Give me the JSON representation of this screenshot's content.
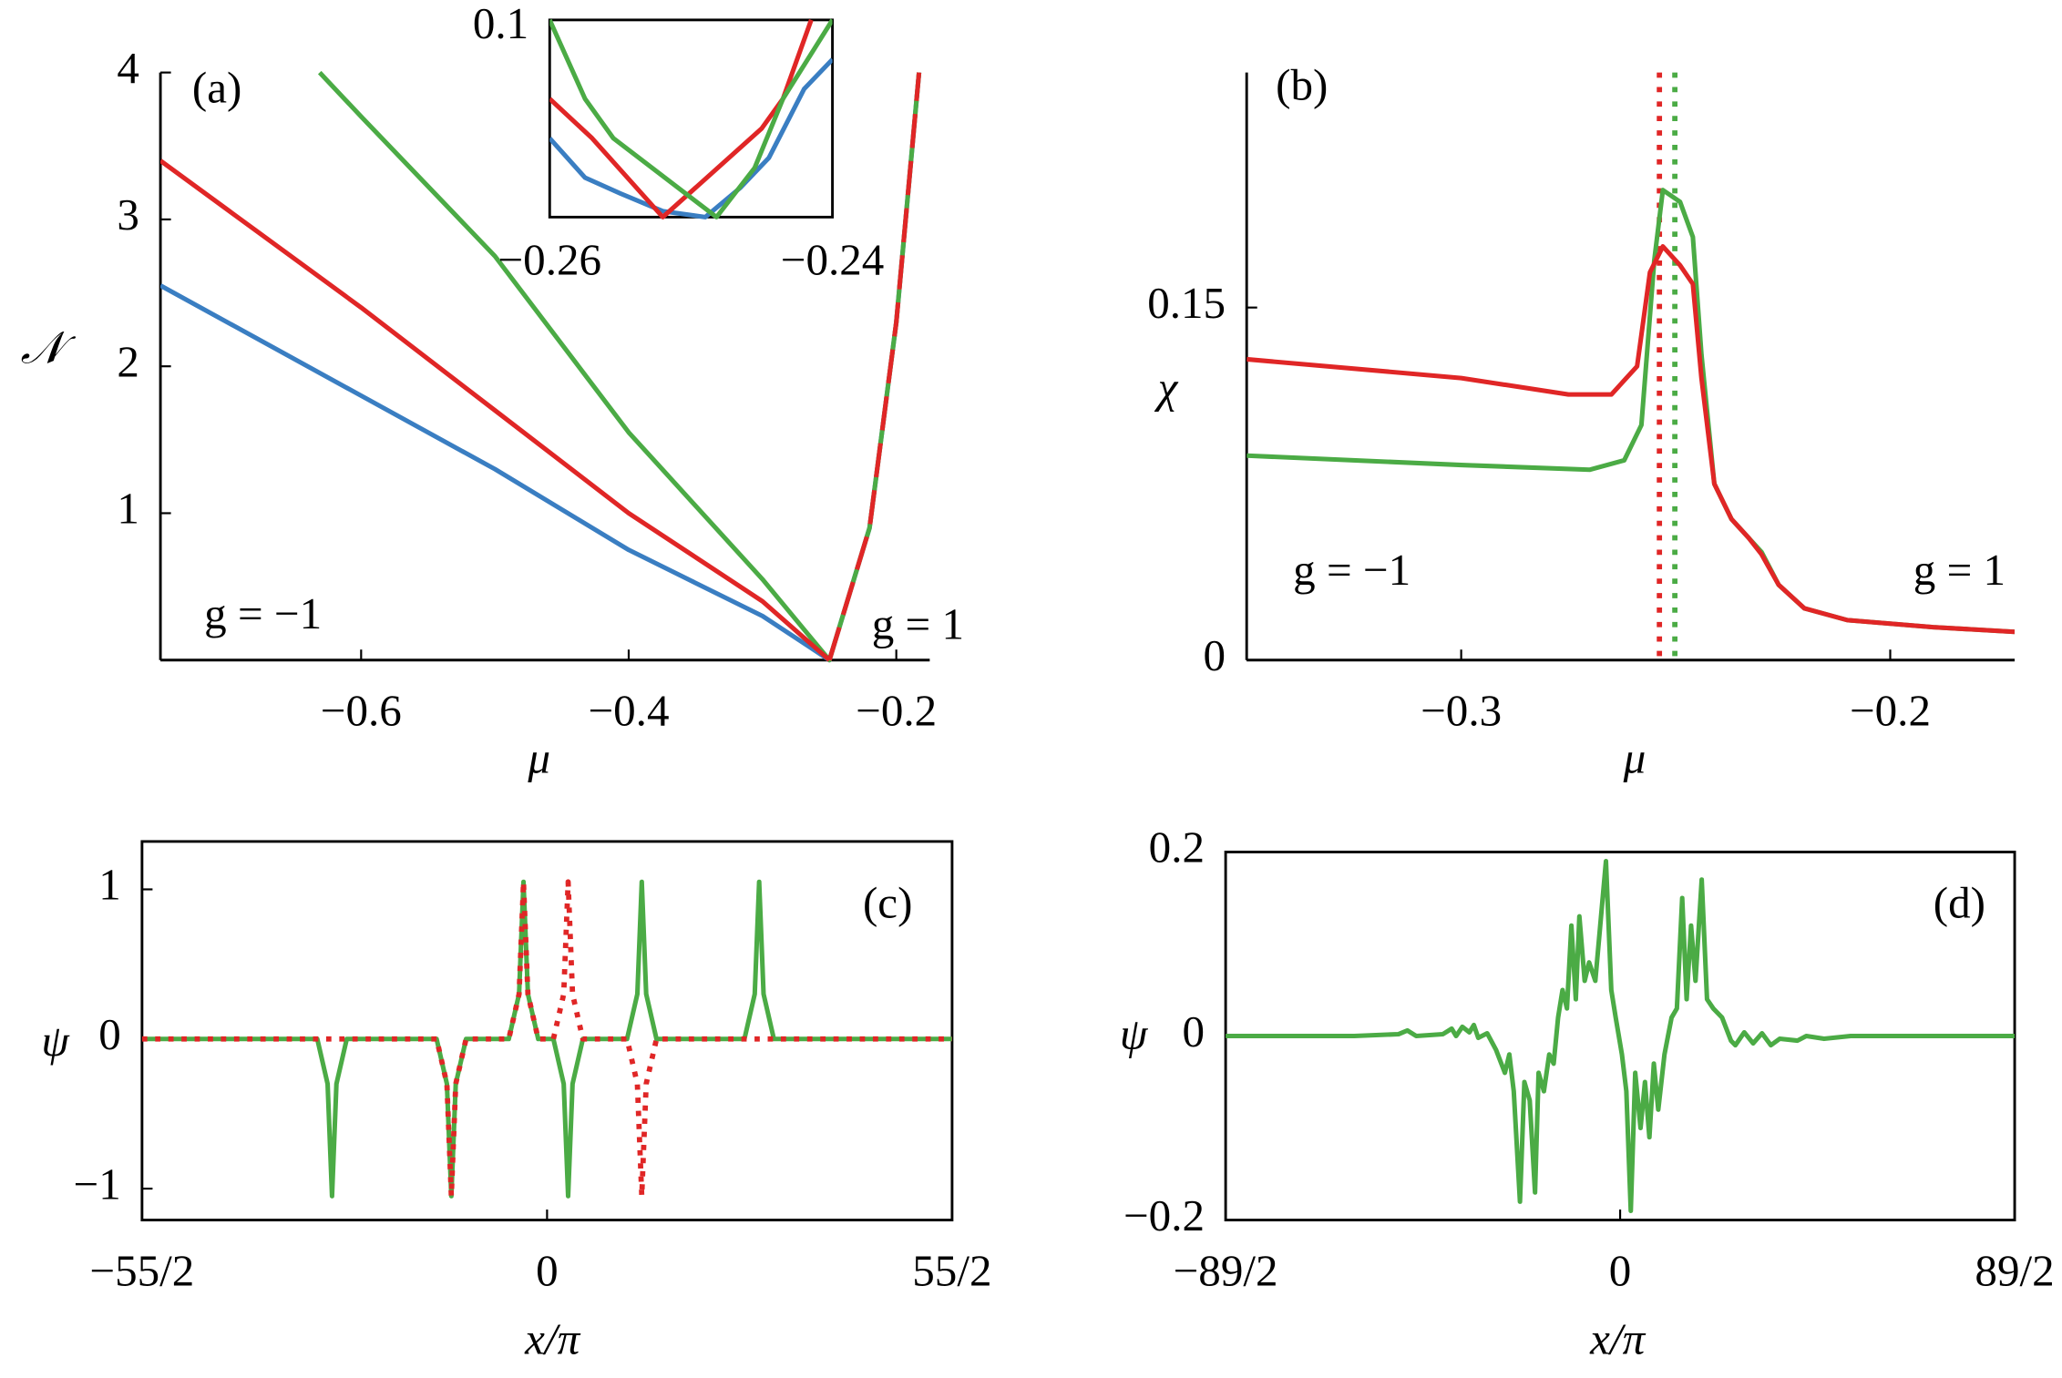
{
  "chart_data": [
    {
      "type": "line",
      "frame": "left-bottom",
      "xlabel": "μ",
      "ylabel": "𝒩",
      "annotations": [
        "(a)",
        "g = −1",
        "g = 1"
      ],
      "xlim": [
        -0.75,
        -0.175
      ],
      "ylim": [
        0,
        4
      ],
      "xticks": [
        {
          "value": -0.6,
          "label": "−0.6"
        },
        {
          "value": -0.4,
          "label": "−0.4"
        },
        {
          "value": -0.2,
          "label": "−0.2"
        }
      ],
      "yticks": [
        1,
        2,
        3,
        4
      ],
      "series": [
        {
          "color": "#3a7ec2",
          "style": "solid",
          "x": [
            -0.75,
            -0.6,
            -0.5,
            -0.4,
            -0.3,
            -0.25,
            -0.22,
            -0.2,
            -0.183
          ],
          "values": [
            2.55,
            1.8,
            1.3,
            0.75,
            0.3,
            0,
            0.9,
            2.3,
            4
          ]
        },
        {
          "color": "#4bab45",
          "style": "solid",
          "x": [
            -0.631,
            -0.6,
            -0.5,
            -0.4,
            -0.3,
            -0.25,
            -0.22,
            -0.2,
            -0.183
          ],
          "values": [
            4,
            3.7,
            2.75,
            1.55,
            0.55,
            0,
            0.9,
            2.3,
            4
          ]
        },
        {
          "color": "#e02626",
          "style": "solid",
          "x": [
            -0.75,
            -0.6,
            -0.5,
            -0.4,
            -0.3,
            -0.25
          ],
          "values": [
            3.4,
            2.4,
            1.7,
            1.0,
            0.4,
            0
          ]
        },
        {
          "color": "#e02626",
          "style": "dashed",
          "x": [
            -0.25,
            -0.22,
            -0.2,
            -0.183
          ],
          "values": [
            0,
            0.9,
            2.3,
            4
          ]
        }
      ]
    },
    {
      "type": "line",
      "frame": "box",
      "annotations": [],
      "xlim": [
        -0.26,
        -0.24
      ],
      "ylim": [
        0,
        0.1
      ],
      "xticks": [
        {
          "value": -0.26,
          "label": "−0.26"
        },
        {
          "value": -0.24,
          "label": "−0.24"
        }
      ],
      "yticks": [
        0.1
      ],
      "series": [
        {
          "color": "#3a7ec2",
          "style": "solid",
          "x": [
            -0.26,
            -0.2575,
            -0.255,
            -0.252,
            -0.249,
            -0.2465,
            -0.2445,
            -0.242,
            -0.24
          ],
          "values": [
            0.04,
            0.02,
            0.012,
            0.003,
            0,
            0.015,
            0.03,
            0.065,
            0.08
          ]
        },
        {
          "color": "#e02626",
          "style": "solid",
          "x": [
            -0.26,
            -0.257,
            -0.252,
            -0.245,
            -0.2435,
            -0.2415
          ],
          "values": [
            0.06,
            0.04,
            0,
            0.045,
            0.06,
            0.1
          ]
        },
        {
          "color": "#4bab45",
          "style": "solid",
          "x": [
            -0.26,
            -0.2575,
            -0.2555,
            -0.2482,
            -0.2455,
            -0.2435,
            -0.24
          ],
          "values": [
            0.1,
            0.06,
            0.04,
            0,
            0.025,
            0.06,
            0.1
          ]
        }
      ]
    },
    {
      "type": "line",
      "frame": "left-bottom",
      "xlabel": "μ",
      "ylabel": "χ",
      "annotations": [
        "(b)",
        "g = −1",
        "g = 1"
      ],
      "xlim": [
        -0.35,
        -0.171
      ],
      "ylim": [
        0,
        0.25
      ],
      "xticks": [
        {
          "value": -0.3,
          "label": "−0.3"
        },
        {
          "value": -0.2,
          "label": "−0.2"
        }
      ],
      "yticks": [
        0,
        0.15
      ],
      "vlines": [
        {
          "x": -0.2538,
          "color": "#e02626"
        },
        {
          "x": -0.2502,
          "color": "#4bab45"
        }
      ],
      "series": [
        {
          "color": "#4bab45",
          "style": "solid",
          "x": [
            -0.35,
            -0.3,
            -0.27,
            -0.262,
            -0.258,
            -0.255,
            -0.253,
            -0.249,
            -0.246,
            -0.244,
            -0.241,
            -0.237,
            -0.233,
            -0.23,
            -0.226,
            -0.22,
            -0.21,
            -0.19,
            -0.171
          ],
          "values": [
            0.087,
            0.083,
            0.081,
            0.085,
            0.1,
            0.17,
            0.2,
            0.195,
            0.18,
            0.13,
            0.075,
            0.06,
            0.052,
            0.046,
            0.032,
            0.022,
            0.017,
            0.014,
            0.012
          ]
        },
        {
          "color": "#e02626",
          "style": "solid",
          "x": [
            -0.35,
            -0.3,
            -0.275,
            -0.265,
            -0.259,
            -0.256,
            -0.253,
            -0.249,
            -0.246,
            -0.244,
            -0.241,
            -0.237,
            -0.233,
            -0.23,
            -0.226,
            -0.22,
            -0.21,
            -0.19,
            -0.171
          ],
          "values": [
            0.128,
            0.12,
            0.113,
            0.113,
            0.125,
            0.165,
            0.176,
            0.168,
            0.16,
            0.12,
            0.075,
            0.06,
            0.052,
            0.045,
            0.032,
            0.022,
            0.017,
            0.014,
            0.012
          ]
        }
      ]
    },
    {
      "type": "line",
      "frame": "box",
      "xlabel": "x/π",
      "ylabel": "ψ",
      "annotations": [
        "(c)"
      ],
      "xlim": [
        -27.5,
        27.5
      ],
      "ylim": [
        -1.21,
        1.32
      ],
      "xticks": [
        {
          "value": -27.5,
          "label": "−55/2"
        },
        0,
        {
          "value": 27.5,
          "label": "55/2"
        }
      ],
      "yticks": [
        {
          "value": -1,
          "label": "−1"
        },
        0,
        1
      ],
      "series": [
        {
          "color": "#4bab45",
          "style": "solid",
          "x": [
            -27.5,
            -15.6,
            -14.9,
            -14.6,
            -14.3,
            -13.6,
            -7.5,
            -6.8,
            -6.5,
            -6.2,
            -5.5,
            -2.6,
            -1.9,
            -1.6,
            -1.3,
            -0.6,
            0.43,
            1.13,
            1.43,
            1.73,
            2.43,
            5.43,
            6.13,
            6.43,
            6.73,
            7.43,
            13.4,
            14.1,
            14.4,
            14.7,
            15.4,
            27.5
          ],
          "values": [
            0,
            0,
            -0.3,
            -1.05,
            -0.3,
            0,
            0,
            -0.3,
            -1.05,
            -0.3,
            0,
            0,
            0.3,
            1.05,
            0.3,
            0,
            0,
            -0.3,
            -1.05,
            -0.3,
            0,
            0,
            0.3,
            1.05,
            0.3,
            0,
            0,
            0.3,
            1.05,
            0.3,
            0,
            0
          ]
        },
        {
          "color": "#e02626",
          "style": "dotted",
          "x": [
            -27.5,
            -7.5,
            -6.8,
            -6.5,
            -6.2,
            -5.5,
            -2.6,
            -1.9,
            -1.6,
            -1.3,
            -0.6,
            0.43,
            1.13,
            1.43,
            1.73,
            2.43,
            5.43,
            6.13,
            6.43,
            6.73,
            7.43,
            27.5
          ],
          "values": [
            0,
            0,
            -0.3,
            -1.05,
            -0.3,
            0,
            0,
            0.3,
            1.05,
            0.3,
            0,
            0,
            0.3,
            1.05,
            0.3,
            0,
            0,
            -0.3,
            -1.05,
            -0.3,
            0,
            0
          ]
        }
      ]
    },
    {
      "type": "line",
      "frame": "box",
      "xlabel": "x/π",
      "ylabel": "ψ",
      "annotations": [
        "(d)"
      ],
      "xlim": [
        -44.5,
        44.5
      ],
      "ylim": [
        -0.2,
        0.2
      ],
      "xticks": [
        {
          "value": -44.5,
          "label": "−89/2"
        },
        0,
        {
          "value": 44.5,
          "label": "89/2"
        }
      ],
      "yticks": [
        {
          "value": -0.2,
          "label": "−0.2"
        },
        0,
        0.2
      ],
      "series": [
        {
          "color": "#4bab45",
          "style": "solid",
          "x": [
            -44.5,
            -30,
            -25,
            -24,
            -23,
            -20,
            -19,
            -18.5,
            -17.8,
            -17,
            -16.5,
            -16,
            -15,
            -14,
            -13,
            -12.5,
            -12,
            -11.3,
            -10.8,
            -10.2,
            -9.6,
            -9.2,
            -8.6,
            -8,
            -7.5,
            -7,
            -6.5,
            -6,
            -5.5,
            -5,
            -4.6,
            -4,
            -3.5,
            -2.8,
            -1.6,
            -1,
            -0.5,
            0.2,
            0.7,
            1.2,
            1.7,
            2.3,
            2.8,
            3.3,
            3.8,
            4.3,
            5,
            5.8,
            6.4,
            7,
            7.5,
            8,
            8.5,
            9.2,
            9.8,
            10.5,
            11.5,
            12.5,
            13,
            14,
            15,
            16,
            17,
            18,
            20,
            21,
            23,
            26,
            44.5
          ],
          "values": [
            0,
            0,
            0.002,
            0.006,
            0,
            0.002,
            0.008,
            0,
            0.01,
            0.004,
            0.012,
            -0.002,
            0.003,
            -0.015,
            -0.04,
            -0.02,
            -0.06,
            -0.18,
            -0.05,
            -0.07,
            -0.17,
            -0.04,
            -0.06,
            -0.02,
            -0.03,
            0.02,
            0.05,
            0.03,
            0.12,
            0.04,
            0.13,
            0.06,
            0.08,
            0.06,
            0.19,
            0.05,
            0.02,
            -0.02,
            -0.06,
            -0.19,
            -0.04,
            -0.1,
            -0.05,
            -0.11,
            -0.03,
            -0.08,
            -0.02,
            0.02,
            0.03,
            0.15,
            0.04,
            0.12,
            0.06,
            0.17,
            0.04,
            0.03,
            0.02,
            -0.005,
            -0.01,
            0.004,
            -0.008,
            0.003,
            -0.01,
            -0.003,
            -0.005,
            0,
            -0.003,
            0,
            0
          ]
        }
      ]
    }
  ]
}
